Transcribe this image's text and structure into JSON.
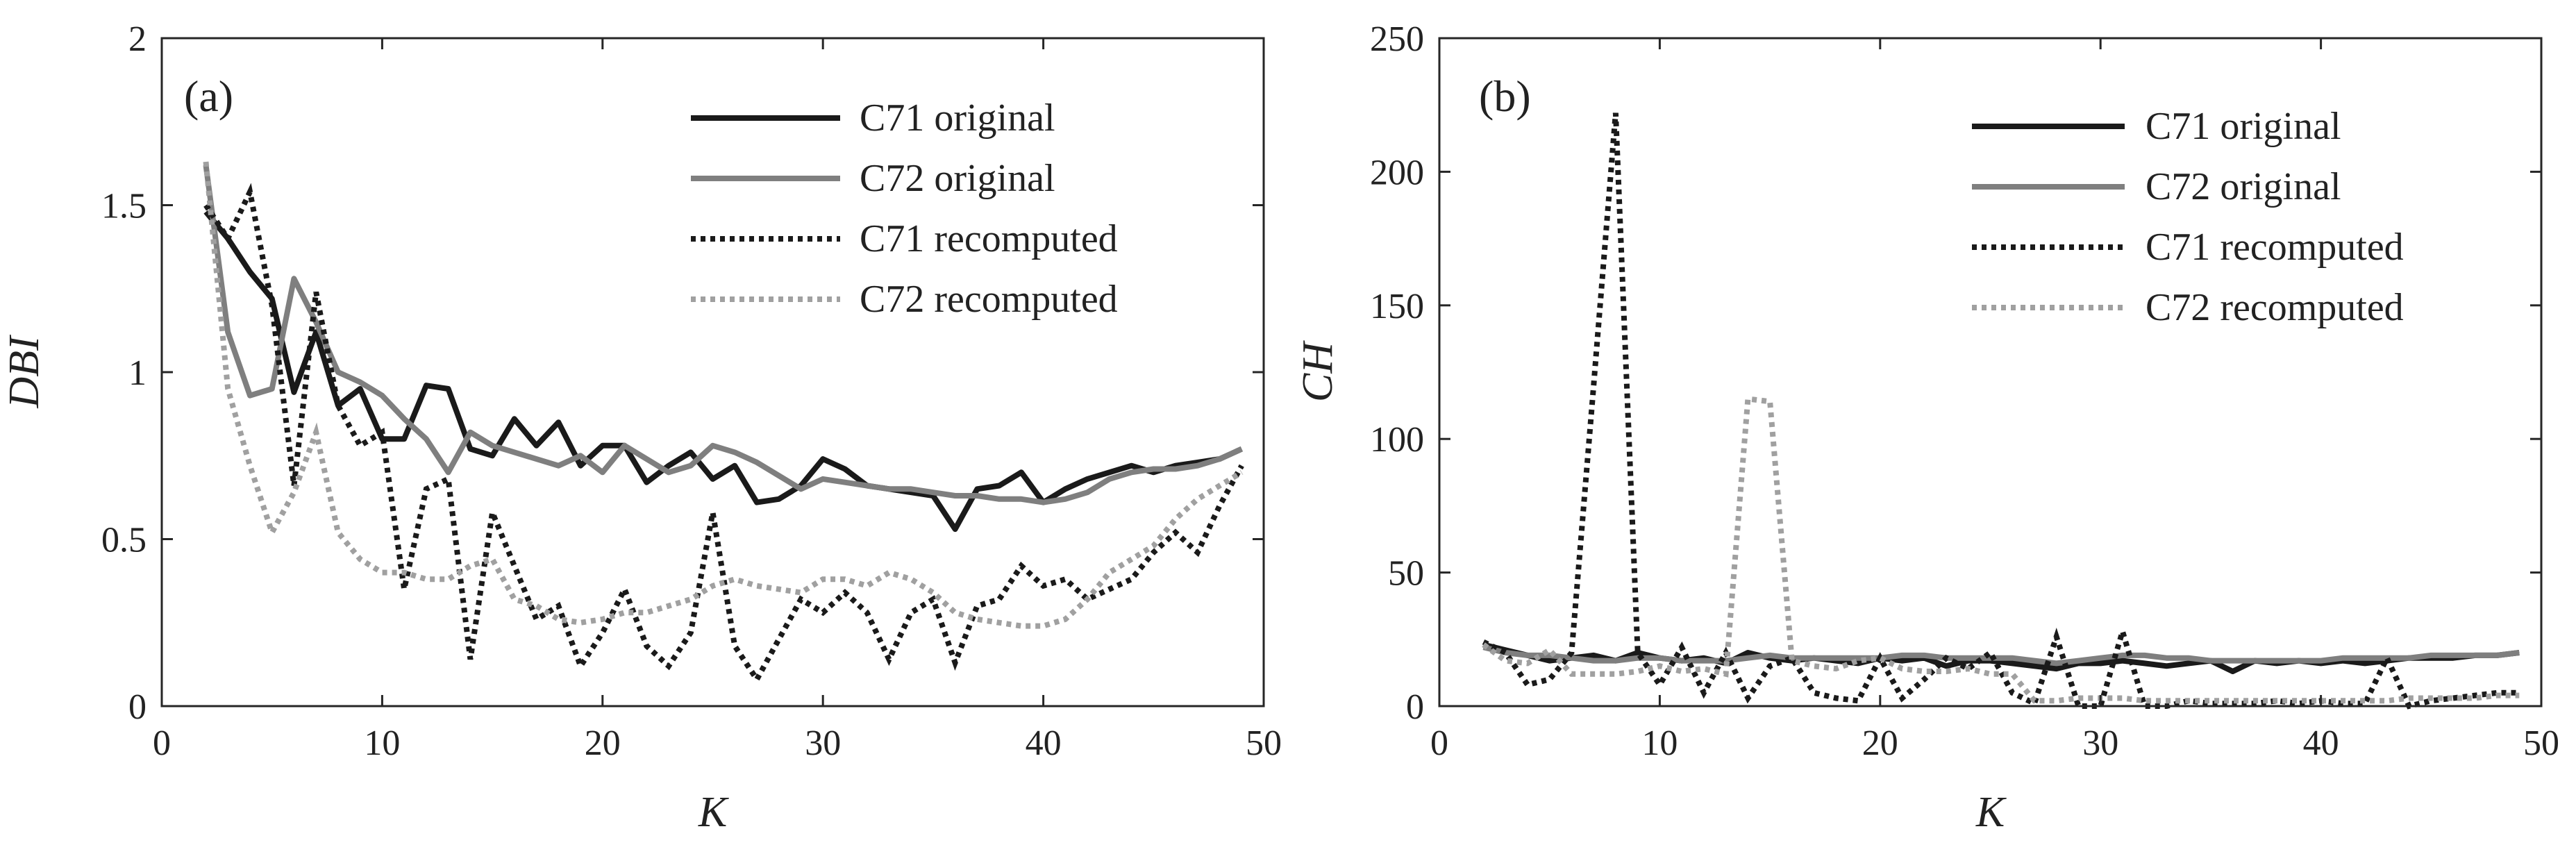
{
  "chart_data": [
    {
      "type": "line",
      "panel_label": "(a)",
      "xlabel": "K",
      "ylabel": "DBI",
      "xlim": [
        0,
        50
      ],
      "ylim": [
        0,
        2
      ],
      "xticks": [
        0,
        10,
        20,
        30,
        40,
        50
      ],
      "yticks": [
        0,
        0.5,
        1,
        1.5,
        2
      ],
      "xtick_labels": [
        "0",
        "10",
        "20",
        "30",
        "40",
        "50"
      ],
      "ytick_labels": [
        "0",
        "0.5",
        "1",
        "1.5",
        "2"
      ],
      "legend_position": "top-right",
      "x": [
        2,
        3,
        4,
        5,
        6,
        7,
        8,
        9,
        10,
        11,
        12,
        13,
        14,
        15,
        16,
        17,
        18,
        19,
        20,
        21,
        22,
        23,
        24,
        25,
        26,
        27,
        28,
        29,
        30,
        31,
        32,
        33,
        34,
        35,
        36,
        37,
        38,
        39,
        40,
        41,
        42,
        43,
        44,
        45,
        46,
        47,
        48,
        49
      ],
      "series": [
        {
          "name": "C71 original",
          "color": "#1a1a1a",
          "style": "solid",
          "values": [
            1.48,
            1.4,
            1.3,
            1.22,
            0.94,
            1.12,
            0.9,
            0.95,
            0.8,
            0.8,
            0.96,
            0.95,
            0.77,
            0.75,
            0.86,
            0.78,
            0.85,
            0.72,
            0.78,
            0.78,
            0.67,
            0.72,
            0.76,
            0.68,
            0.72,
            0.61,
            0.62,
            0.66,
            0.74,
            0.71,
            0.66,
            0.65,
            0.64,
            0.63,
            0.53,
            0.65,
            0.66,
            0.7,
            0.61,
            0.65,
            0.68,
            0.7,
            0.72,
            0.7,
            0.72,
            0.73,
            0.74,
            0.77
          ]
        },
        {
          "name": "C72 original",
          "color": "#7f7f7f",
          "style": "solid",
          "values": [
            1.62,
            1.12,
            0.93,
            0.95,
            1.28,
            1.15,
            1.0,
            0.97,
            0.93,
            0.86,
            0.8,
            0.7,
            0.82,
            0.78,
            0.76,
            0.74,
            0.72,
            0.75,
            0.7,
            0.78,
            0.74,
            0.7,
            0.72,
            0.78,
            0.76,
            0.73,
            0.69,
            0.65,
            0.68,
            0.67,
            0.66,
            0.65,
            0.65,
            0.64,
            0.63,
            0.63,
            0.62,
            0.62,
            0.61,
            0.62,
            0.64,
            0.68,
            0.7,
            0.71,
            0.71,
            0.72,
            0.74,
            0.77
          ]
        },
        {
          "name": "C71 recomputed",
          "color": "#1a1a1a",
          "style": "dotted",
          "values": [
            1.5,
            1.4,
            1.54,
            1.2,
            0.66,
            1.24,
            0.9,
            0.78,
            0.82,
            0.35,
            0.65,
            0.68,
            0.14,
            0.58,
            0.42,
            0.26,
            0.3,
            0.12,
            0.22,
            0.35,
            0.18,
            0.12,
            0.22,
            0.58,
            0.18,
            0.08,
            0.2,
            0.32,
            0.28,
            0.34,
            0.28,
            0.14,
            0.28,
            0.32,
            0.13,
            0.3,
            0.32,
            0.42,
            0.36,
            0.38,
            0.32,
            0.35,
            0.38,
            0.46,
            0.52,
            0.46,
            0.6,
            0.72
          ]
        },
        {
          "name": "C72 recomputed",
          "color": "#a0a0a0",
          "style": "dotted",
          "values": [
            1.63,
            0.95,
            0.72,
            0.52,
            0.64,
            0.82,
            0.52,
            0.44,
            0.4,
            0.4,
            0.38,
            0.38,
            0.42,
            0.44,
            0.32,
            0.3,
            0.26,
            0.25,
            0.26,
            0.28,
            0.28,
            0.3,
            0.32,
            0.36,
            0.38,
            0.36,
            0.35,
            0.34,
            0.38,
            0.38,
            0.36,
            0.4,
            0.38,
            0.34,
            0.28,
            0.26,
            0.25,
            0.24,
            0.24,
            0.26,
            0.32,
            0.4,
            0.44,
            0.48,
            0.56,
            0.62,
            0.66,
            0.7
          ]
        }
      ]
    },
    {
      "type": "line",
      "panel_label": "(b)",
      "xlabel": "K",
      "ylabel": "CH",
      "xlim": [
        0,
        50
      ],
      "ylim": [
        0,
        250
      ],
      "xticks": [
        0,
        10,
        20,
        30,
        40,
        50
      ],
      "yticks": [
        0,
        50,
        100,
        150,
        200,
        250
      ],
      "xtick_labels": [
        "0",
        "10",
        "20",
        "30",
        "40",
        "50"
      ],
      "ytick_labels": [
        "0",
        "50",
        "100",
        "150",
        "200",
        "250"
      ],
      "legend_position": "top-right",
      "x": [
        2,
        3,
        4,
        5,
        6,
        7,
        8,
        9,
        10,
        11,
        12,
        13,
        14,
        15,
        16,
        17,
        18,
        19,
        20,
        21,
        22,
        23,
        24,
        25,
        26,
        27,
        28,
        29,
        30,
        31,
        32,
        33,
        34,
        35,
        36,
        37,
        38,
        39,
        40,
        41,
        42,
        43,
        44,
        45,
        46,
        47,
        48,
        49
      ],
      "series": [
        {
          "name": "C71 original",
          "color": "#1a1a1a",
          "style": "solid",
          "values": [
            23,
            21,
            19,
            17,
            18,
            19,
            17,
            20,
            18,
            17,
            18,
            16,
            20,
            18,
            17,
            18,
            17,
            16,
            18,
            17,
            18,
            15,
            17,
            17,
            16,
            15,
            14,
            16,
            16,
            17,
            16,
            15,
            16,
            17,
            13,
            17,
            16,
            17,
            16,
            17,
            16,
            17,
            18,
            18,
            18,
            19,
            19,
            20
          ]
        },
        {
          "name": "C72 original",
          "color": "#7f7f7f",
          "style": "solid",
          "values": [
            22,
            20,
            19,
            19,
            18,
            17,
            17,
            18,
            18,
            17,
            17,
            17,
            18,
            19,
            18,
            18,
            18,
            18,
            18,
            19,
            19,
            18,
            18,
            18,
            18,
            17,
            16,
            17,
            18,
            19,
            19,
            18,
            18,
            17,
            17,
            17,
            17,
            17,
            17,
            18,
            18,
            18,
            18,
            19,
            19,
            19,
            19,
            20
          ]
        },
        {
          "name": "C71 recomputed",
          "color": "#1a1a1a",
          "style": "dotted",
          "values": [
            24,
            20,
            8,
            10,
            20,
            120,
            222,
            20,
            8,
            22,
            5,
            20,
            3,
            15,
            18,
            5,
            3,
            2,
            18,
            3,
            10,
            18,
            14,
            20,
            5,
            1,
            26,
            0,
            0,
            28,
            0,
            0,
            2,
            1,
            1,
            1,
            2,
            1,
            2,
            1,
            1,
            18,
            0,
            2,
            3,
            4,
            5,
            5
          ]
        },
        {
          "name": "C72 recomputed",
          "color": "#a0a0a0",
          "style": "dotted",
          "values": [
            23,
            17,
            16,
            21,
            12,
            12,
            12,
            13,
            15,
            13,
            14,
            12,
            115,
            114,
            17,
            15,
            14,
            17,
            18,
            14,
            13,
            13,
            14,
            12,
            12,
            2,
            2,
            3,
            3,
            3,
            2,
            2,
            2,
            2,
            2,
            2,
            2,
            2,
            2,
            2,
            2,
            2,
            3,
            3,
            3,
            3,
            4,
            4
          ]
        }
      ]
    }
  ]
}
